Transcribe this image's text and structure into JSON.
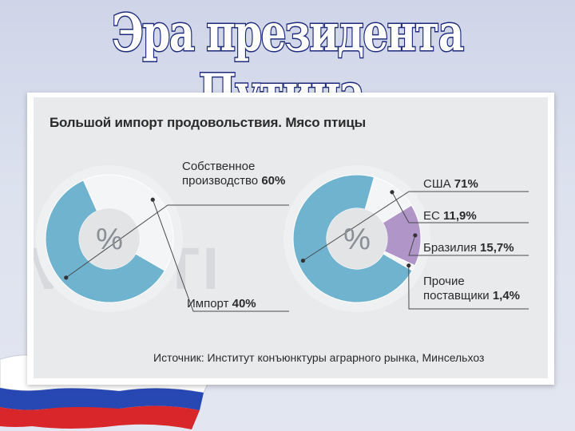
{
  "slide_title": "Эра президента Путина.",
  "chart_title": "Большой импорт продовольствия. Мясо птицы",
  "source_note": "Источник: Институт конъюнктуры аграрного рынка, Минсельхоз",
  "watermark": "VOSTI",
  "colors": {
    "own": "#6fb3cf",
    "import": "#f4f5f7",
    "usa": "#6fb3cf",
    "eu": "#f4f5f7",
    "brazil": "#b095c9",
    "other": "#f4f5f7",
    "panel": "#e9eaec"
  },
  "chart_data": [
    {
      "type": "pie",
      "center_label": "%",
      "slices": [
        {
          "label": "Собственное производство",
          "value": 60,
          "value_text": "60%",
          "color": "#6fb3cf"
        },
        {
          "label": "Импорт",
          "value": 40,
          "value_text": "40%",
          "color": "#f4f5f7"
        }
      ]
    },
    {
      "type": "pie",
      "center_label": "%",
      "slices": [
        {
          "label": "США",
          "value": 71,
          "value_text": "71%",
          "color": "#6fb3cf"
        },
        {
          "label": "ЕС",
          "value": 11.9,
          "value_text": "11,9%",
          "color": "#f4f5f7"
        },
        {
          "label": "Бразилия",
          "value": 15.7,
          "value_text": "15,7%",
          "color": "#b095c9"
        },
        {
          "label": "Прочие поставщики",
          "value": 1.4,
          "value_text": "1,4%",
          "color": "#f4f5f7"
        }
      ]
    }
  ],
  "labels": {
    "own_line1": "Собственное",
    "own_line2": "производство",
    "import": "Импорт",
    "usa": "США",
    "eu": "ЕС",
    "brazil": "Бразилия",
    "other_line1": "Прочие",
    "other_line2": "поставщики"
  }
}
